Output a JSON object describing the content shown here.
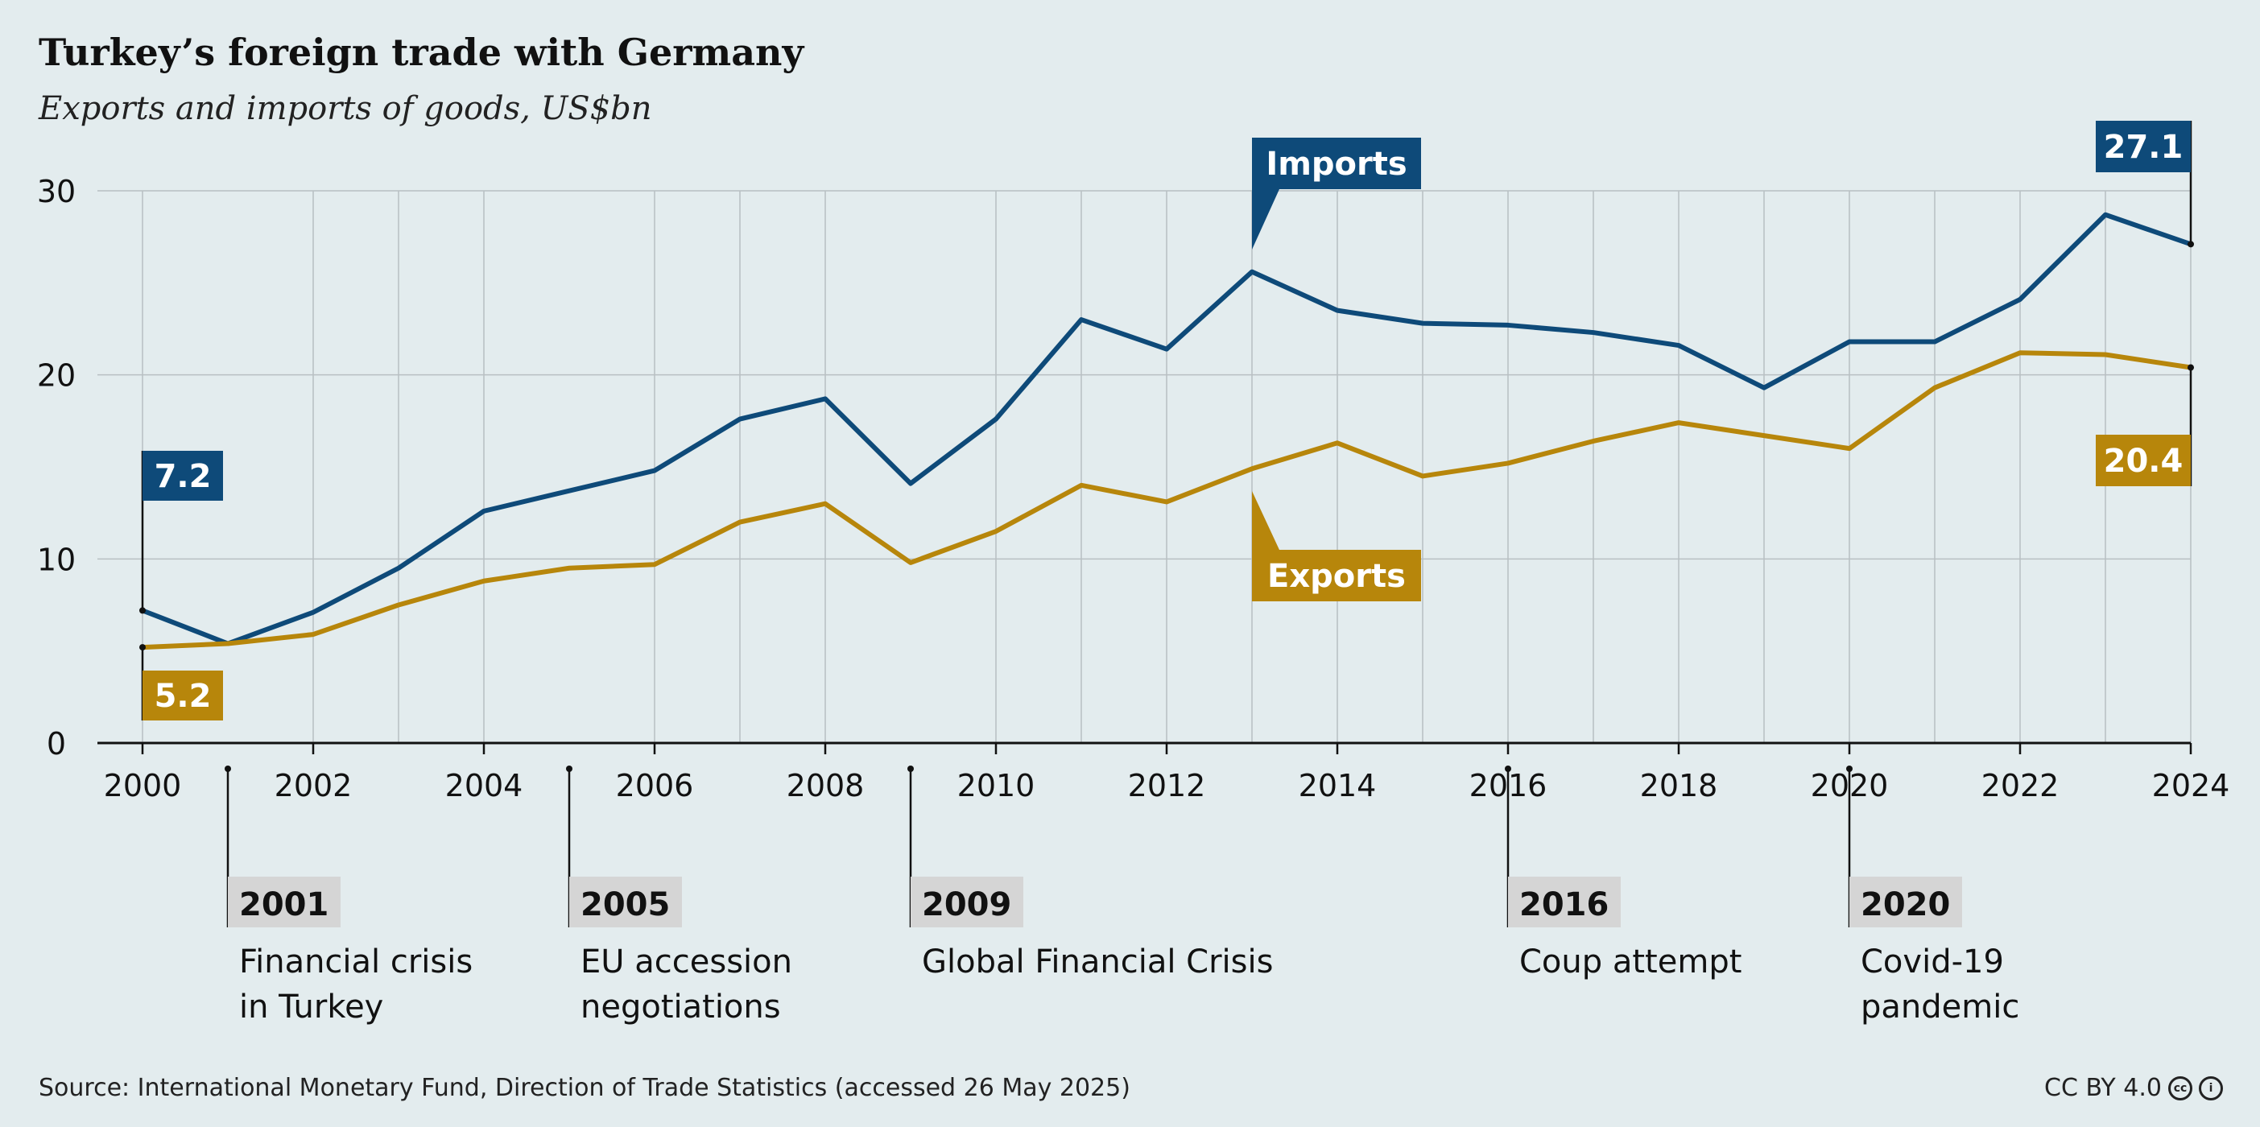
{
  "title": "Turkey’s foreign trade with Germany",
  "subtitle": "Exports and imports of goods, US$bn",
  "footer": {
    "source": "Source: International Monetary Fund, Direction of Trade Statistics (accessed 26 May 2025)",
    "license": "CC BY 4.0"
  },
  "colors": {
    "imports": "#0e4a79",
    "exports": "#b7860b",
    "event_box": "#d5d5d5",
    "grid": "#b8bfc2"
  },
  "icons": [
    "creative-commons-icon",
    "attribution-icon"
  ],
  "chart_data": {
    "type": "line",
    "xlim": [
      2000,
      2024
    ],
    "ylim": [
      0,
      30
    ],
    "x_ticks": [
      "2000",
      "2002",
      "2004",
      "2006",
      "2008",
      "2010",
      "2012",
      "2014",
      "2016",
      "2018",
      "2020",
      "2022",
      "2024"
    ],
    "y_ticks": [
      "0",
      "10",
      "20",
      "30"
    ],
    "grid": true,
    "x": [
      2000,
      2001,
      2002,
      2003,
      2004,
      2005,
      2006,
      2007,
      2008,
      2009,
      2010,
      2011,
      2012,
      2013,
      2014,
      2015,
      2016,
      2017,
      2018,
      2019,
      2020,
      2021,
      2022,
      2023,
      2024
    ],
    "series": [
      {
        "name": "Imports",
        "values": [
          7.2,
          5.4,
          7.1,
          9.5,
          12.6,
          13.7,
          14.8,
          17.6,
          18.7,
          14.1,
          17.6,
          23.0,
          21.4,
          25.6,
          23.5,
          22.8,
          22.7,
          22.3,
          21.6,
          19.3,
          21.8,
          21.8,
          24.1,
          28.7,
          27.1
        ],
        "start_label": "7.2",
        "end_label": "27.1"
      },
      {
        "name": "Exports",
        "values": [
          5.2,
          5.4,
          5.9,
          7.5,
          8.8,
          9.5,
          9.7,
          12.0,
          13.0,
          9.8,
          11.5,
          14.0,
          13.1,
          14.9,
          16.3,
          14.5,
          15.2,
          16.4,
          17.4,
          16.7,
          16.0,
          19.3,
          21.2,
          21.1,
          20.4
        ],
        "start_label": "5.2",
        "end_label": "20.4"
      }
    ],
    "events": [
      {
        "year": "2001",
        "text": [
          "Financial crisis",
          "in Turkey"
        ]
      },
      {
        "year": "2005",
        "text": [
          "EU accession",
          "negotiations"
        ]
      },
      {
        "year": "2009",
        "text": [
          "Global Financial Crisis"
        ]
      },
      {
        "year": "2016",
        "text": [
          "Coup attempt"
        ]
      },
      {
        "year": "2020",
        "text": [
          "Covid-19",
          "pandemic"
        ]
      }
    ]
  }
}
